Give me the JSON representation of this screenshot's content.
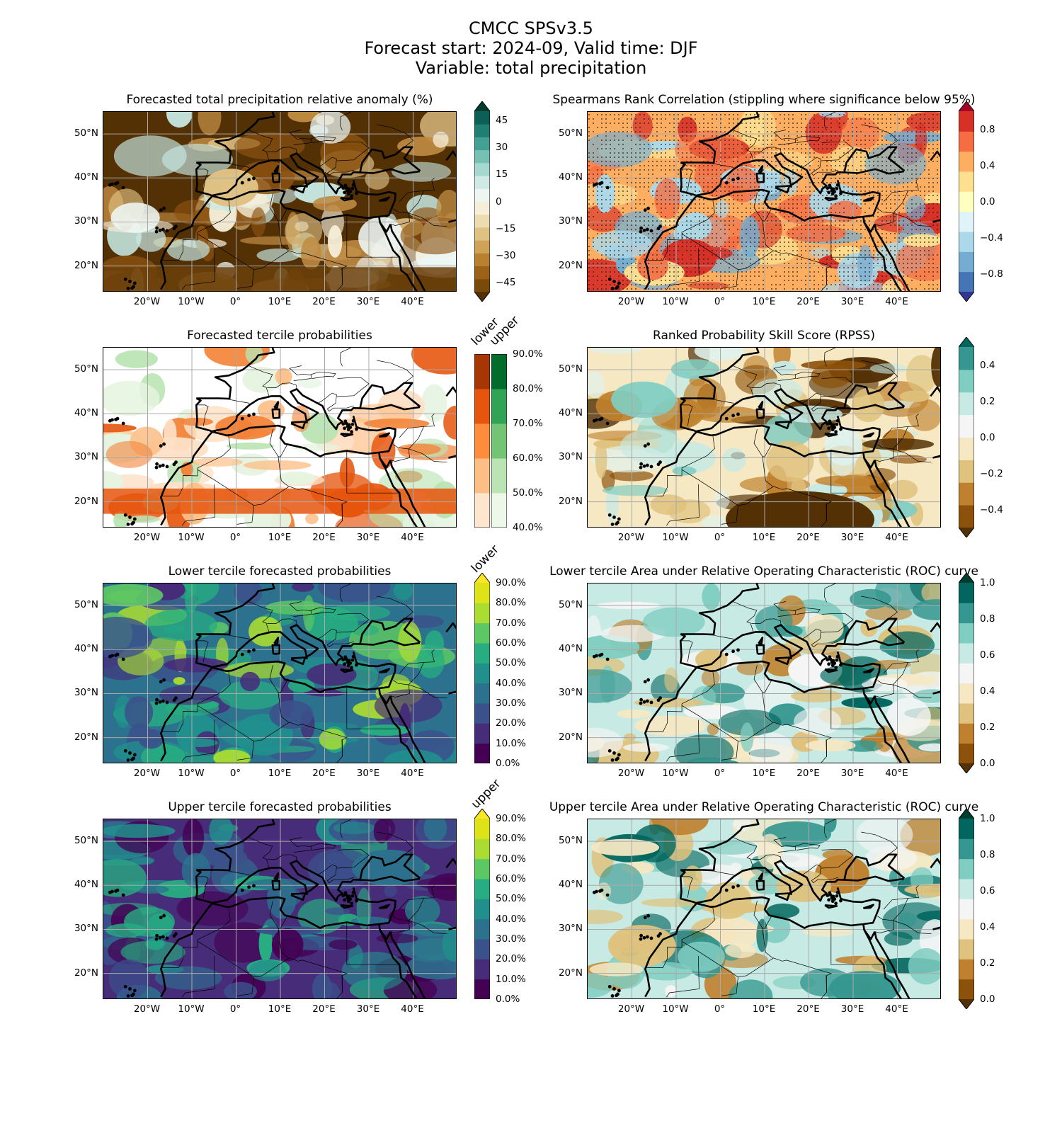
{
  "figure": {
    "title_lines": [
      "CMCC SPSv3.5",
      "Forecast start: 2024-09, Valid time: DJF",
      "Variable: total precipitation"
    ]
  },
  "map_extent": {
    "lon_min": -30,
    "lon_max": 50,
    "lat_min": 14,
    "lat_max": 55,
    "x_ticks": [
      "20°W",
      "10°W",
      "0°",
      "10°E",
      "20°E",
      "30°E",
      "40°E"
    ],
    "y_ticks": [
      "50°N",
      "40°N",
      "30°N",
      "20°N"
    ],
    "gridlines": true
  },
  "panels": [
    {
      "id": "anomaly",
      "title": "Forecasted total precipitation relative anomaly (%)",
      "colorbar": {
        "ticks": [
          "45",
          "30",
          "15",
          "0",
          "−15",
          "−30",
          "−45"
        ],
        "tick_values": [
          45,
          30,
          15,
          0,
          -15,
          -30,
          -45
        ],
        "range": [
          -50,
          50
        ],
        "extend": "both",
        "colors": [
          "#543005",
          "#7a4a0b",
          "#9d6218",
          "#b8802f",
          "#cea257",
          "#dfc183",
          "#ecdcb0",
          "#f5eed8",
          "#eef6f4",
          "#cfeae5",
          "#a5d9cf",
          "#76c1b3",
          "#44a095",
          "#1f7f74",
          "#0b5f54",
          "#003c30"
        ]
      },
      "map_colors": [
        "#543005",
        "#8c5210",
        "#bf8b42",
        "#dfc183",
        "#f5eed8",
        "#eef6f4",
        "#c7e8e3"
      ]
    },
    {
      "id": "spearman",
      "title": "Spearmans Rank Correlation (stippling where significance below 95%)",
      "colorbar": {
        "ticks": [
          "0.8",
          "0.4",
          "0.0",
          "−0.4",
          "−0.8"
        ],
        "tick_values": [
          0.8,
          0.4,
          0.0,
          -0.4,
          -0.8
        ],
        "range": [
          -1,
          1
        ],
        "extend": "both",
        "colors": [
          "#313695",
          "#4575b4",
          "#74add1",
          "#abd9e9",
          "#e0f3f8",
          "#ffffbf",
          "#fee090",
          "#fdae61",
          "#f46d43",
          "#d73027",
          "#a50026"
        ]
      },
      "map_colors": [
        "#fdae61",
        "#fee090",
        "#f46d43",
        "#abd9e9",
        "#74add1",
        "#d73027"
      ]
    },
    {
      "id": "tercile",
      "title": "Forecasted tercile probabilities",
      "colorbar_dual": {
        "headers": [
          "lower",
          "upper"
        ],
        "ticks": [
          "90.0%",
          "80.0%",
          "70.0%",
          "60.0%",
          "50.0%",
          "40.0%"
        ],
        "tick_values": [
          90,
          80,
          70,
          60,
          50,
          40
        ],
        "lower_colors": [
          "#fee6ce",
          "#fdbe85",
          "#fd8d3c",
          "#e6550d",
          "#a63603"
        ],
        "upper_colors": [
          "#edf8e9",
          "#bae4b3",
          "#74c476",
          "#31a354",
          "#006d2c"
        ]
      },
      "map_colors": [
        "#ffffff",
        "#fde0c6",
        "#fdbe85",
        "#f3843a",
        "#e6550d",
        "#e5f4e0",
        "#bae4b3"
      ]
    },
    {
      "id": "rpss",
      "title": "Ranked Probability Skill Score (RPSS)",
      "colorbar": {
        "ticks": [
          "0.4",
          "0.2",
          "0.0",
          "−0.2",
          "−0.4"
        ],
        "tick_values": [
          0.4,
          0.2,
          0.0,
          -0.2,
          -0.4
        ],
        "range": [
          -0.5,
          0.5
        ],
        "extend": "both",
        "colors": [
          "#543005",
          "#8c510a",
          "#bf812d",
          "#dfc27d",
          "#f6e8c3",
          "#f5f5f5",
          "#c7eae5",
          "#80cdc1",
          "#35978f",
          "#01665e"
        ]
      },
      "map_colors": [
        "#f6e8c3",
        "#dff2ee",
        "#c7eae5",
        "#80cdc1",
        "#dfc27d",
        "#bf812d",
        "#8c510a",
        "#543005"
      ]
    },
    {
      "id": "lower_prob",
      "title": "Lower tercile forecasted probabilities",
      "colorbar": {
        "header": "lower",
        "ticks": [
          "90.0%",
          "80.0%",
          "70.0%",
          "60.0%",
          "50.0%",
          "40.0%",
          "30.0%",
          "20.0%",
          "10.0%",
          "0.0%"
        ],
        "tick_values": [
          90,
          80,
          70,
          60,
          50,
          40,
          30,
          20,
          10,
          0
        ],
        "range": [
          0,
          90
        ],
        "extend": "max",
        "colors": [
          "#440154",
          "#472c7a",
          "#3b518b",
          "#2c718e",
          "#21908d",
          "#27ad81",
          "#5cc863",
          "#aadc32",
          "#dde318",
          "#fde725"
        ]
      },
      "map_colors": [
        "#2c718e",
        "#21908d",
        "#3b518b",
        "#27ad81",
        "#5cc863",
        "#aadc32",
        "#472c7a"
      ]
    },
    {
      "id": "lower_roc",
      "title": "Lower tercile Area under Relative Operating Characteristic (ROC) curve",
      "colorbar": {
        "ticks": [
          "1.0",
          "0.8",
          "0.6",
          "0.4",
          "0.2",
          "0.0"
        ],
        "tick_values": [
          1.0,
          0.8,
          0.6,
          0.4,
          0.2,
          0.0
        ],
        "range": [
          0,
          1
        ],
        "extend": "both",
        "colors": [
          "#543005",
          "#8c510a",
          "#bf812d",
          "#dfc27d",
          "#f6e8c3",
          "#f5f5f5",
          "#c7eae5",
          "#80cdc1",
          "#35978f",
          "#01665e",
          "#003c30"
        ]
      },
      "map_colors": [
        "#c7eae5",
        "#80cdc1",
        "#f5f5f5",
        "#35978f",
        "#f6e8c3",
        "#dfc27d",
        "#01665e",
        "#bf812d"
      ]
    },
    {
      "id": "upper_prob",
      "title": "Upper tercile forecasted probabilities",
      "colorbar": {
        "header": "upper",
        "ticks": [
          "90.0%",
          "80.0%",
          "70.0%",
          "60.0%",
          "50.0%",
          "40.0%",
          "30.0%",
          "20.0%",
          "10.0%",
          "0.0%"
        ],
        "tick_values": [
          90,
          80,
          70,
          60,
          50,
          40,
          30,
          20,
          10,
          0
        ],
        "range": [
          0,
          90
        ],
        "extend": "max",
        "colors": [
          "#440154",
          "#472c7a",
          "#3b518b",
          "#2c718e",
          "#21908d",
          "#27ad81",
          "#5cc863",
          "#aadc32",
          "#dde318",
          "#fde725"
        ]
      },
      "map_colors": [
        "#472c7a",
        "#3b518b",
        "#2c718e",
        "#440154",
        "#21908d",
        "#27ad81"
      ]
    },
    {
      "id": "upper_roc",
      "title": "Upper tercile Area under Relative Operating Characteristic (ROC) curve",
      "colorbar": {
        "ticks": [
          "1.0",
          "0.8",
          "0.6",
          "0.4",
          "0.2",
          "0.0"
        ],
        "tick_values": [
          1.0,
          0.8,
          0.6,
          0.4,
          0.2,
          0.0
        ],
        "range": [
          0,
          1
        ],
        "extend": "both",
        "colors": [
          "#543005",
          "#8c510a",
          "#bf812d",
          "#dfc27d",
          "#f6e8c3",
          "#f5f5f5",
          "#c7eae5",
          "#80cdc1",
          "#35978f",
          "#01665e",
          "#003c30"
        ]
      },
      "map_colors": [
        "#c7eae5",
        "#80cdc1",
        "#f5f5f5",
        "#35978f",
        "#f6e8c3",
        "#dfc27d",
        "#01665e",
        "#bf812d"
      ]
    }
  ]
}
